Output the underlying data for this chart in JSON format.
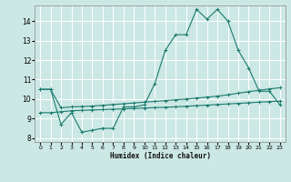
{
  "xlabel": "Humidex (Indice chaleur)",
  "background_color": "#cce8e4",
  "grid_color": "#ffffff",
  "line_color": "#1a7a6e",
  "xlim": [
    -0.5,
    23.5
  ],
  "ylim": [
    7.8,
    14.8
  ],
  "xticks": [
    0,
    1,
    2,
    3,
    4,
    5,
    6,
    7,
    8,
    9,
    10,
    11,
    12,
    13,
    14,
    15,
    16,
    17,
    18,
    19,
    20,
    21,
    22,
    23
  ],
  "yticks": [
    8,
    9,
    10,
    11,
    12,
    13,
    14
  ],
  "line1_x": [
    0,
    1,
    2,
    3,
    4,
    5,
    6,
    7,
    8,
    9,
    10,
    11,
    12,
    13,
    14,
    15,
    16,
    17,
    18,
    19,
    20,
    21,
    22,
    23
  ],
  "line1_y": [
    10.5,
    10.5,
    8.7,
    9.3,
    8.3,
    8.4,
    8.5,
    8.5,
    9.6,
    9.6,
    9.7,
    10.8,
    12.5,
    13.3,
    13.3,
    14.6,
    14.1,
    14.6,
    14.0,
    12.5,
    11.6,
    10.4,
    10.4,
    9.7
  ],
  "line2_x": [
    0,
    1,
    2,
    3,
    4,
    5,
    6,
    7,
    8,
    9,
    10,
    11,
    12,
    13,
    14,
    15,
    16,
    17,
    18,
    19,
    20,
    21,
    22,
    23
  ],
  "line2_y": [
    9.3,
    9.3,
    9.35,
    9.4,
    9.42,
    9.44,
    9.46,
    9.48,
    9.5,
    9.52,
    9.54,
    9.56,
    9.58,
    9.6,
    9.63,
    9.66,
    9.69,
    9.72,
    9.75,
    9.78,
    9.81,
    9.84,
    9.87,
    9.9
  ],
  "line3_x": [
    0,
    1,
    2,
    3,
    4,
    5,
    6,
    7,
    8,
    9,
    10,
    11,
    12,
    13,
    14,
    15,
    16,
    17,
    18,
    19,
    20,
    21,
    22,
    23
  ],
  "line3_y": [
    10.5,
    10.5,
    9.55,
    9.6,
    9.62,
    9.64,
    9.68,
    9.72,
    9.76,
    9.8,
    9.84,
    9.88,
    9.92,
    9.96,
    10.0,
    10.05,
    10.1,
    10.15,
    10.22,
    10.3,
    10.38,
    10.45,
    10.52,
    10.58
  ]
}
